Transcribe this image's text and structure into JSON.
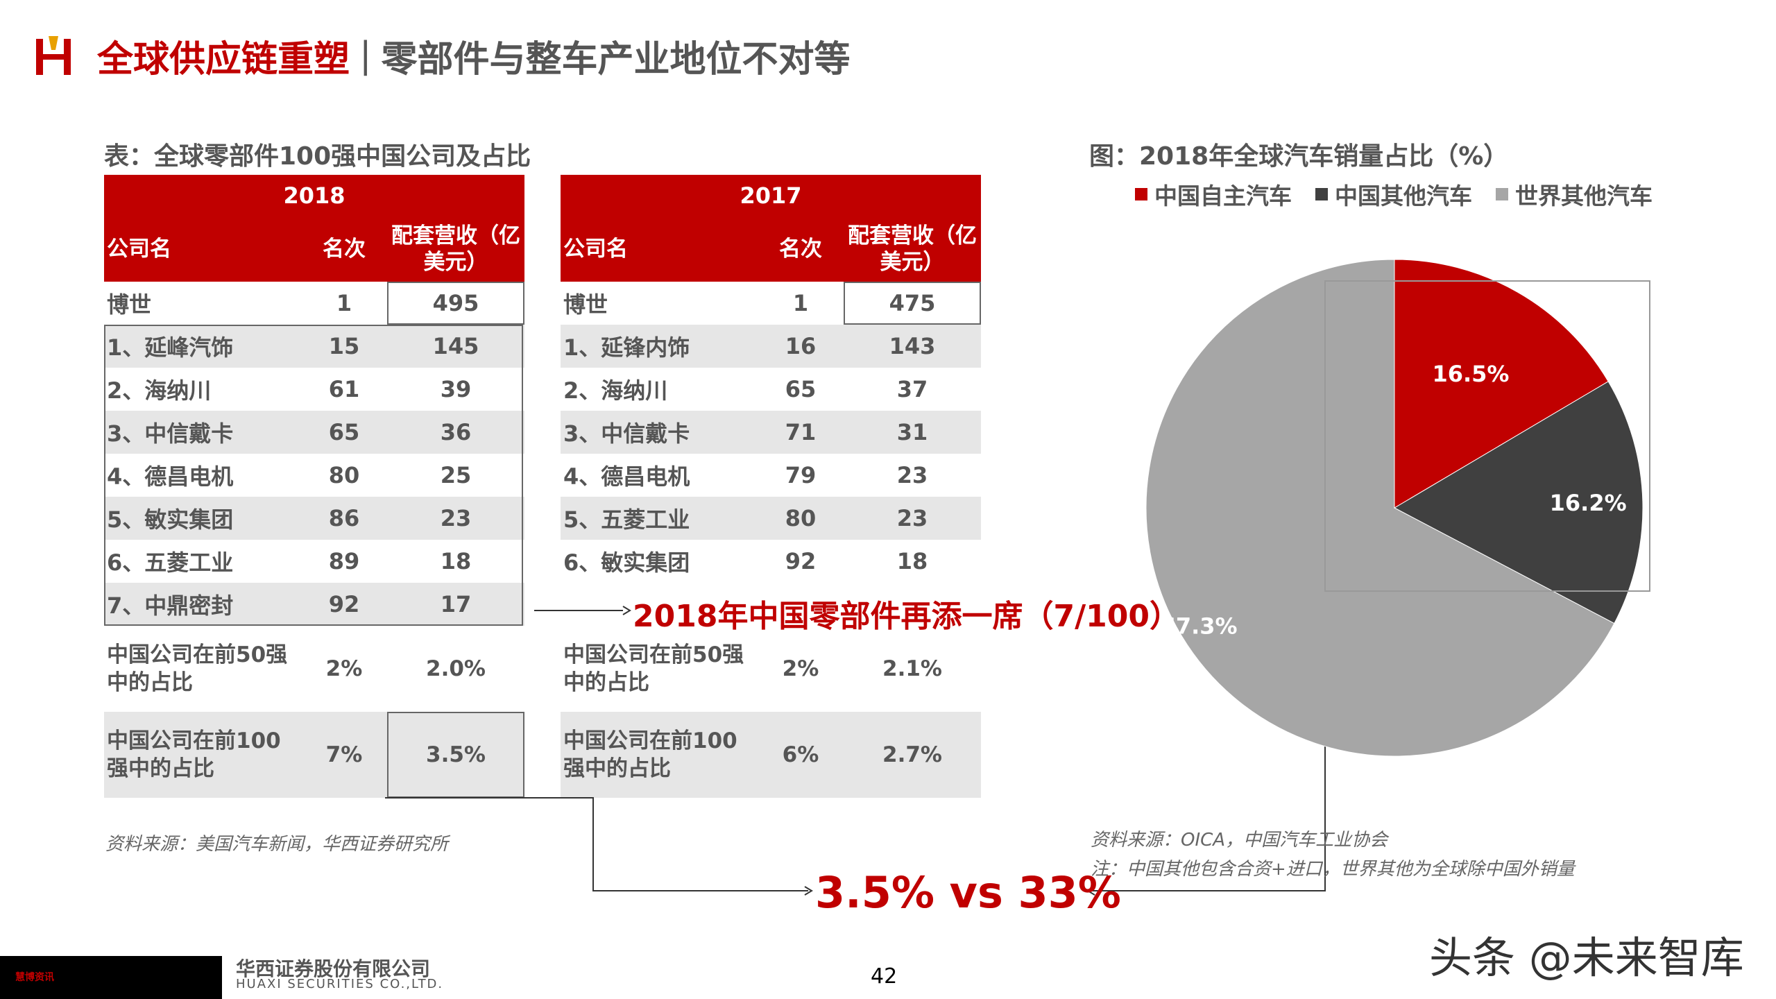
{
  "header": {
    "title_main": "全球供应链重塑",
    "title_sep": "|",
    "title_sub": "零部件与整车产业地位不对等"
  },
  "left": {
    "caption": "表：全球零部件100强中国公司及占比",
    "headers": {
      "company": "公司名",
      "rank": "名次",
      "revenue": "配套营收（亿美元）"
    },
    "table_2018": {
      "year": "2018",
      "rows": [
        {
          "name": "博世",
          "rank": "1",
          "rev": "495"
        },
        {
          "name": "1、延峰汽饰",
          "rank": "15",
          "rev": "145"
        },
        {
          "name": "2、海纳川",
          "rank": "61",
          "rev": "39"
        },
        {
          "name": "3、中信戴卡",
          "rank": "65",
          "rev": "36"
        },
        {
          "name": "4、德昌电机",
          "rank": "80",
          "rev": "25"
        },
        {
          "name": "5、敏实集团",
          "rank": "86",
          "rev": "23"
        },
        {
          "name": "6、五菱工业",
          "rank": "89",
          "rev": "18"
        },
        {
          "name": "7、中鼎密封",
          "rank": "92",
          "rev": "17"
        }
      ],
      "stats": [
        {
          "name": "中国公司在前50强中的占比",
          "a": "2%",
          "b": "2.0%"
        },
        {
          "name": "中国公司在前100强中的占比",
          "a": "7%",
          "b": "3.5%"
        }
      ]
    },
    "table_2017": {
      "year": "2017",
      "rows": [
        {
          "name": "博世",
          "rank": "1",
          "rev": "475"
        },
        {
          "name": "1、延锋内饰",
          "rank": "16",
          "rev": "143"
        },
        {
          "name": "2、海纳川",
          "rank": "65",
          "rev": "37"
        },
        {
          "name": "3、中信戴卡",
          "rank": "71",
          "rev": "31"
        },
        {
          "name": "4、德昌电机",
          "rank": "79",
          "rev": "23"
        },
        {
          "name": "5、五菱工业",
          "rank": "80",
          "rev": "23"
        },
        {
          "name": "6、敏实集团",
          "rank": "92",
          "rev": "18"
        }
      ],
      "stats": [
        {
          "name": "中国公司在前50强中的占比",
          "a": "2%",
          "b": "2.1%"
        },
        {
          "name": "中国公司在前100强中的占比",
          "a": "6%",
          "b": "2.7%"
        }
      ]
    },
    "callout": "2018年中国零部件再添一席（7/100）",
    "source": "资料来源：美国汽车新闻，华西证券研究所"
  },
  "right": {
    "caption": "图：2018年全球汽车销量占比（%）",
    "source_line1": "资料来源：OICA，中国汽车工业协会",
    "source_line2": "注：中国其他包含合资+进口，世界其他为全球除中国外销量"
  },
  "compare": "3.5% vs 33%",
  "chart_data": {
    "type": "pie",
    "title": "图：2018年全球汽车销量占比（%）",
    "series": [
      {
        "name": "中国自主汽车",
        "value": 16.5,
        "label": "16.5%",
        "color": "#c00000"
      },
      {
        "name": "中国其他汽车",
        "value": 16.2,
        "label": "16.2%",
        "color": "#404040"
      },
      {
        "name": "世界其他汽车",
        "value": 67.3,
        "label": "67.3%",
        "color": "#a6a6a6"
      }
    ],
    "legend_position": "top"
  },
  "footer": {
    "brand_small": "慧博资讯",
    "company_cn": "华西证券股份有限公司",
    "company_en": "HUAXI SECURITIES CO.,LTD.",
    "page": "42",
    "watermark": "头条 @未来智库"
  }
}
